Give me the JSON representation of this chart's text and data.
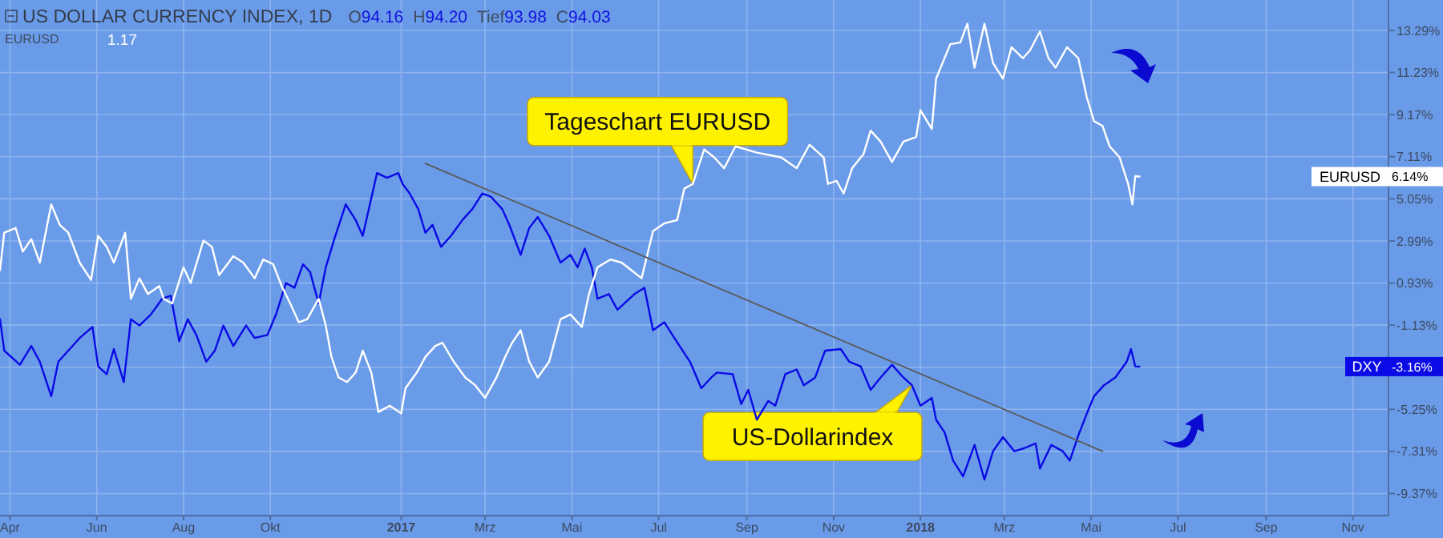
{
  "chart_data": {
    "type": "line",
    "title": "US DOLLAR CURRENCY INDEX, 1D",
    "grid": true,
    "legend": "right",
    "marker": "none",
    "line_style": "solid",
    "xlim": [
      "2016-03-25",
      "2018-11-26"
    ],
    "xticks": [
      {
        "value": "2016-04",
        "label": "Apr"
      },
      {
        "value": "2016-06",
        "label": "Jun"
      },
      {
        "value": "2016-08",
        "label": "Aug"
      },
      {
        "value": "2016-10",
        "label": "Okt"
      },
      {
        "value": "2017-01",
        "label": "2017"
      },
      {
        "value": "2017-03",
        "label": "Mrz"
      },
      {
        "value": "2017-05",
        "label": "Mai"
      },
      {
        "value": "2017-07",
        "label": "Jul"
      },
      {
        "value": "2017-09",
        "label": "Sep"
      },
      {
        "value": "2017-11",
        "label": "Nov"
      },
      {
        "value": "2018-01",
        "label": "2018"
      },
      {
        "value": "2018-03",
        "label": "Mrz"
      },
      {
        "value": "2018-05",
        "label": "Mai"
      },
      {
        "value": "2018-07",
        "label": "Jul"
      },
      {
        "value": "2018-09",
        "label": "Sep"
      },
      {
        "value": "2018-11",
        "label": "Nov"
      }
    ],
    "ylim": [
      -10.45,
      14.78
    ],
    "yticks": [
      {
        "value": 13.29,
        "label": "13.29%"
      },
      {
        "value": 11.23,
        "label": "11.23%"
      },
      {
        "value": 9.17,
        "label": "9.17%"
      },
      {
        "value": 7.11,
        "label": "7.11%"
      },
      {
        "value": 5.05,
        "label": "5.05%"
      },
      {
        "value": 2.99,
        "label": "2.99%"
      },
      {
        "value": 0.93,
        "label": "0.93%"
      },
      {
        "value": -1.13,
        "label": "-1.13%"
      },
      {
        "value": -3.19,
        "label": null
      },
      {
        "value": -5.25,
        "label": "-5.25%"
      },
      {
        "value": -7.31,
        "label": "-7.31%"
      },
      {
        "value": -9.37,
        "label": "-9.37%"
      }
    ],
    "annotations": [
      "O94.16 H94.20 Tief93.98 C94.03",
      "1.17",
      {
        "text": "Tageschart EURUSD",
        "x": "2017-07-25",
        "y": 5.78
      },
      {
        "text": "US-Dollarindex",
        "x": "2017-12-26",
        "y": -4.07
      },
      "-3.16%",
      "6.14%"
    ],
    "series": [
      {
        "name": "DXY",
        "color": "#0a0ae6",
        "x": [
          "2016-03-25",
          "2016-03-28",
          "2016-04-08",
          "2016-04-16",
          "2016-04-22",
          "2016-04-30",
          "2016-05-05",
          "2016-05-12",
          "2016-05-20",
          "2016-05-29",
          "2016-06-02",
          "2016-06-08",
          "2016-06-13",
          "2016-06-20",
          "2016-06-25",
          "2016-07-01",
          "2016-07-09",
          "2016-07-17",
          "2016-07-23",
          "2016-07-29",
          "2016-08-04",
          "2016-08-10",
          "2016-08-17",
          "2016-08-23",
          "2016-08-29",
          "2016-09-05",
          "2016-09-14",
          "2016-09-20",
          "2016-09-29",
          "2016-10-05",
          "2016-10-12",
          "2016-10-18",
          "2016-10-24",
          "2016-10-29",
          "2016-11-04",
          "2016-11-09",
          "2016-11-15",
          "2016-11-23",
          "2016-11-30",
          "2016-12-05",
          "2016-12-10",
          "2016-12-15",
          "2016-12-22",
          "2016-12-30",
          "2017-01-02",
          "2017-01-07",
          "2017-01-13",
          "2017-01-18",
          "2017-01-23",
          "2017-01-29",
          "2017-02-05",
          "2017-02-13",
          "2017-02-20",
          "2017-02-27",
          "2017-03-05",
          "2017-03-13",
          "2017-03-18",
          "2017-03-26",
          "2017-04-01",
          "2017-04-07",
          "2017-04-15",
          "2017-04-23",
          "2017-04-30",
          "2017-05-05",
          "2017-05-10",
          "2017-05-15",
          "2017-05-19",
          "2017-05-27",
          "2017-06-02",
          "2017-06-14",
          "2017-06-21",
          "2017-06-27",
          "2017-07-05",
          "2017-07-12",
          "2017-07-23",
          "2017-07-31",
          "2017-08-07",
          "2017-08-11",
          "2017-08-22",
          "2017-08-28",
          "2017-09-02",
          "2017-09-08",
          "2017-09-16",
          "2017-09-21",
          "2017-09-28",
          "2017-10-06",
          "2017-10-11",
          "2017-10-19",
          "2017-10-26",
          "2017-11-06",
          "2017-11-12",
          "2017-11-20",
          "2017-11-27",
          "2017-12-04",
          "2017-12-12",
          "2017-12-20",
          "2017-12-26",
          "2018-01-01",
          "2018-01-09",
          "2018-01-12",
          "2018-01-18",
          "2018-01-24",
          "2018-01-31",
          "2018-02-08",
          "2018-02-15",
          "2018-02-21",
          "2018-02-28",
          "2018-03-08",
          "2018-03-15",
          "2018-03-23",
          "2018-03-26",
          "2018-04-03",
          "2018-04-11",
          "2018-04-16",
          "2018-04-22",
          "2018-04-28",
          "2018-05-03",
          "2018-05-10",
          "2018-05-18",
          "2018-05-26",
          "2018-05-29",
          "2018-06-01",
          "2018-06-04"
        ],
        "values": [
          -0.84,
          -2.38,
          -3.07,
          -2.15,
          -2.92,
          -4.61,
          -2.92,
          -2.38,
          -1.76,
          -1.22,
          -3.15,
          -3.53,
          -2.3,
          -3.92,
          -0.84,
          -1.15,
          -0.61,
          0.16,
          0.31,
          -1.92,
          -0.84,
          -1.61,
          -2.92,
          -2.38,
          -1.15,
          -2.15,
          -1.15,
          -1.76,
          -1.61,
          -0.61,
          0.93,
          0.7,
          1.85,
          1.47,
          -0.07,
          1.7,
          3.08,
          4.78,
          4.01,
          3.24,
          4.78,
          6.31,
          6.08,
          6.31,
          5.78,
          5.31,
          4.55,
          3.39,
          3.78,
          2.7,
          3.24,
          4.01,
          4.55,
          5.31,
          5.16,
          4.55,
          3.78,
          2.31,
          3.62,
          4.16,
          3.24,
          1.93,
          2.31,
          1.7,
          2.62,
          1.7,
          0.16,
          0.39,
          -0.38,
          0.39,
          0.7,
          -1.38,
          -0.99,
          -1.76,
          -2.92,
          -4.22,
          -3.69,
          -3.45,
          -3.53,
          -4.99,
          -4.3,
          -5.76,
          -4.84,
          -5.07,
          -3.53,
          -3.3,
          -4.07,
          -3.69,
          -2.38,
          -2.3,
          -2.92,
          -3.15,
          -4.3,
          -3.69,
          -3.07,
          -3.69,
          -4.07,
          -5.07,
          -4.69,
          -5.76,
          -6.38,
          -7.76,
          -8.53,
          -6.99,
          -8.69,
          -7.3,
          -6.61,
          -7.3,
          -7.15,
          -6.92,
          -8.15,
          -6.99,
          -7.3,
          -7.76,
          -6.53,
          -5.45,
          -4.61,
          -4.07,
          -3.69,
          -2.92,
          -2.3,
          -3.15,
          -3.16
        ]
      },
      {
        "name": "EURUSD",
        "color": "#ffffff",
        "x": [
          "2016-03-25",
          "2016-03-28",
          "2016-04-05",
          "2016-04-10",
          "2016-04-16",
          "2016-04-22",
          "2016-04-30",
          "2016-05-06",
          "2016-05-12",
          "2016-05-20",
          "2016-05-28",
          "2016-06-02",
          "2016-06-08",
          "2016-06-13",
          "2016-06-21",
          "2016-06-25",
          "2016-07-01",
          "2016-07-07",
          "2016-07-15",
          "2016-07-18",
          "2016-07-24",
          "2016-08-01",
          "2016-08-06",
          "2016-08-15",
          "2016-08-21",
          "2016-08-26",
          "2016-09-05",
          "2016-09-12",
          "2016-09-20",
          "2016-09-26",
          "2016-10-03",
          "2016-10-09",
          "2016-10-15",
          "2016-10-21",
          "2016-10-27",
          "2016-11-04",
          "2016-11-09",
          "2016-11-13",
          "2016-11-18",
          "2016-11-24",
          "2016-11-30",
          "2016-12-05",
          "2016-12-11",
          "2016-12-16",
          "2016-12-24",
          "2017-01-01",
          "2017-01-04",
          "2017-01-12",
          "2017-01-18",
          "2017-01-25",
          "2017-01-30",
          "2017-02-07",
          "2017-02-15",
          "2017-02-22",
          "2017-03-01",
          "2017-03-09",
          "2017-03-15",
          "2017-03-20",
          "2017-03-26",
          "2017-04-01",
          "2017-04-07",
          "2017-04-15",
          "2017-04-23",
          "2017-04-30",
          "2017-05-08",
          "2017-05-13",
          "2017-05-19",
          "2017-05-28",
          "2017-06-05",
          "2017-06-12",
          "2017-06-19",
          "2017-06-27",
          "2017-07-05",
          "2017-07-14",
          "2017-07-19",
          "2017-07-25",
          "2017-08-02",
          "2017-08-09",
          "2017-08-16",
          "2017-08-24",
          "2017-09-08",
          "2017-09-25",
          "2017-10-06",
          "2017-10-15",
          "2017-10-25",
          "2017-10-28",
          "2017-11-03",
          "2017-11-08",
          "2017-11-14",
          "2017-11-22",
          "2017-11-27",
          "2017-12-04",
          "2017-12-12",
          "2017-12-20",
          "2017-12-29",
          "2018-01-01",
          "2018-01-09",
          "2018-01-12",
          "2018-01-22",
          "2018-01-29",
          "2018-02-03",
          "2018-02-08",
          "2018-02-15",
          "2018-02-21",
          "2018-02-28",
          "2018-03-06",
          "2018-03-14",
          "2018-03-19",
          "2018-03-26",
          "2018-04-01",
          "2018-04-06",
          "2018-04-14",
          "2018-04-22",
          "2018-04-28",
          "2018-05-03",
          "2018-05-09",
          "2018-05-14",
          "2018-05-21",
          "2018-05-27",
          "2018-05-30",
          "2018-06-01",
          "2018-06-04"
        ],
        "values": [
          1.55,
          3.39,
          3.62,
          2.47,
          3.08,
          1.93,
          4.78,
          3.78,
          3.39,
          1.93,
          1.08,
          3.24,
          2.7,
          1.93,
          3.39,
          0.16,
          1.16,
          0.39,
          0.78,
          0.16,
          -0.07,
          1.7,
          0.93,
          3.01,
          2.7,
          1.31,
          2.24,
          1.93,
          1.16,
          2.08,
          1.85,
          0.78,
          -0.07,
          -0.99,
          -0.84,
          0.16,
          -1.15,
          -2.69,
          -3.69,
          -3.92,
          -3.45,
          -2.38,
          -3.45,
          -5.38,
          -5.07,
          -5.45,
          -4.22,
          -3.45,
          -2.69,
          -2.15,
          -1.99,
          -2.92,
          -3.69,
          -4.07,
          -4.69,
          -3.69,
          -2.69,
          -1.99,
          -1.38,
          -2.92,
          -3.69,
          -2.92,
          -0.84,
          -0.61,
          -1.22,
          0.39,
          1.7,
          2.08,
          1.93,
          1.55,
          1.16,
          3.47,
          3.85,
          4.01,
          5.55,
          5.78,
          7.47,
          7.08,
          6.55,
          7.62,
          7.31,
          7.08,
          6.55,
          7.7,
          7.08,
          5.78,
          5.93,
          5.31,
          6.55,
          7.24,
          8.39,
          7.85,
          6.85,
          7.85,
          8.08,
          9.39,
          8.47,
          10.93,
          12.62,
          12.7,
          13.62,
          11.47,
          13.62,
          11.7,
          10.93,
          12.47,
          11.93,
          12.31,
          13.24,
          11.93,
          11.47,
          12.47,
          11.93,
          10.01,
          8.85,
          8.62,
          7.62,
          7.08,
          5.78,
          4.78,
          6.16,
          6.14
        ]
      },
      {
        "type": "line",
        "color": "#5a5a5a",
        "x": [
          "2017-01-18",
          "2018-05-09"
        ],
        "values": [
          6.78,
          -7.3
        ]
      }
    ]
  }
}
